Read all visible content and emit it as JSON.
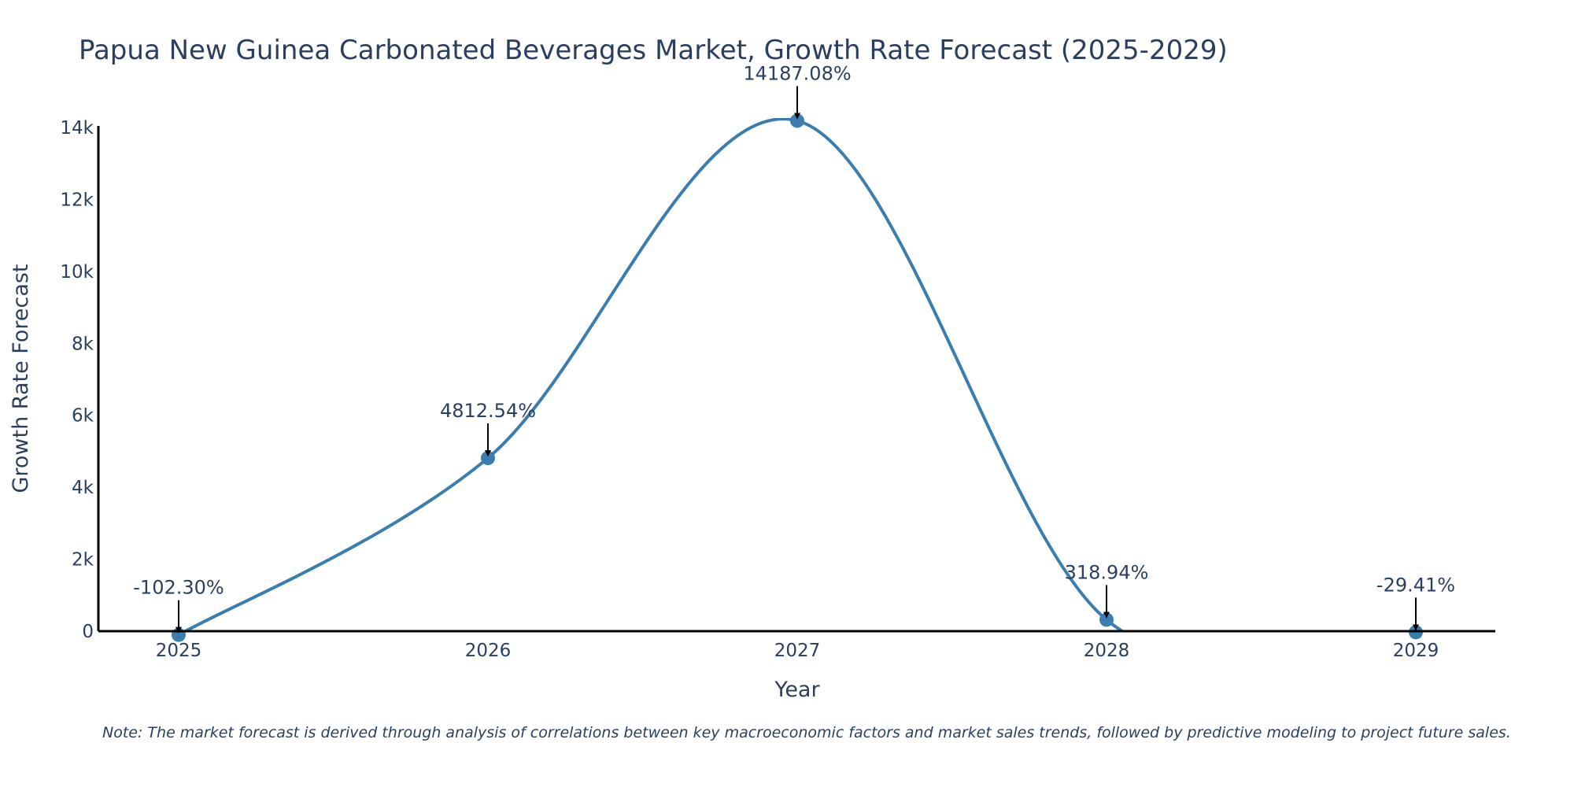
{
  "chart_data": {
    "type": "line",
    "title": "Papua New Guinea Carbonated Beverages Market, Growth Rate Forecast (2025-2029)",
    "xlabel": "Year",
    "ylabel": "Growth Rate Forecast",
    "x": [
      "2025",
      "2026",
      "2027",
      "2028",
      "2029"
    ],
    "values": [
      -102.3,
      4812.54,
      14187.08,
      318.94,
      -29.41
    ],
    "data_labels": [
      "-102.30%",
      "4812.54%",
      "14187.08%",
      "318.94%",
      "-29.41%"
    ],
    "y_ticks": [
      0,
      2000,
      4000,
      6000,
      8000,
      10000,
      12000,
      14000
    ],
    "y_tick_labels": [
      "0",
      "2k",
      "4k",
      "6k",
      "8k",
      "10k",
      "12k",
      "14k"
    ],
    "ylim": [
      0,
      14300
    ],
    "grid": false,
    "line_color": "#3a7dae",
    "marker_color": "#3a7dae"
  },
  "note": "Note: The market forecast is derived through analysis of correlations between key macroeconomic factors and market sales trends, followed by predictive modeling to project future sales."
}
